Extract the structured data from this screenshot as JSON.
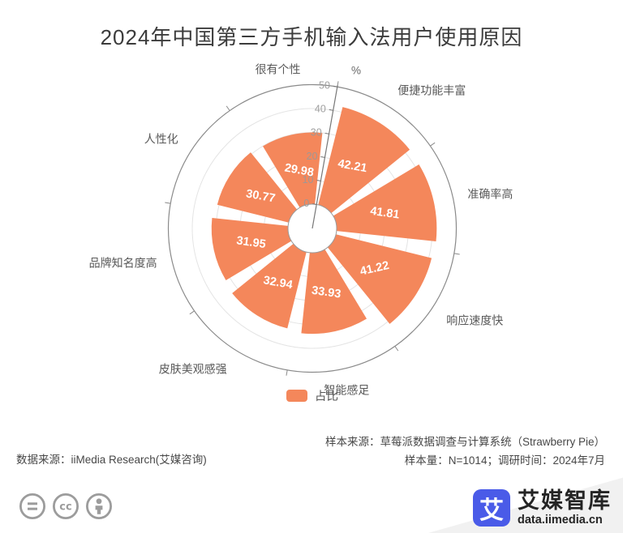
{
  "title": "2024年中国第三方手机输入法用户使用原因",
  "chart_data": {
    "type": "bar",
    "subtype": "polar-rose",
    "categories": [
      "很有个性",
      "便捷功能丰富",
      "准确率高",
      "响应速度快",
      "智能感足",
      "皮肤美观感强",
      "品牌知名度高",
      "人性化"
    ],
    "series": [
      {
        "name": "占比",
        "values": [
          29.98,
          42.21,
          41.81,
          41.22,
          33.93,
          32.94,
          31.95,
          30.77
        ]
      }
    ],
    "radial_ticks": [
      0,
      10,
      20,
      30,
      40,
      50
    ],
    "ylim": [
      0,
      50
    ],
    "unit": "%",
    "bar_color": "#F4875B",
    "grid": "on",
    "legend_position": "bottom"
  },
  "legend": {
    "label": "占比",
    "color": "#F4875B"
  },
  "footer": {
    "source_left": "数据来源：iiMedia Research(艾媒咨询)",
    "sample_source": "样本来源：草莓派数据调查与计算系统（Strawberry Pie）",
    "sample_info": "样本量：N=1014；调研时间：2024年7月"
  },
  "branding": {
    "logo_glyph": "艾",
    "logo_color": "#4A5BE8",
    "brand_name": "艾媒智库",
    "brand_url": "data.iimedia.cn"
  },
  "license_icons": [
    "equals-icon",
    "cc-icon",
    "person-icon"
  ]
}
